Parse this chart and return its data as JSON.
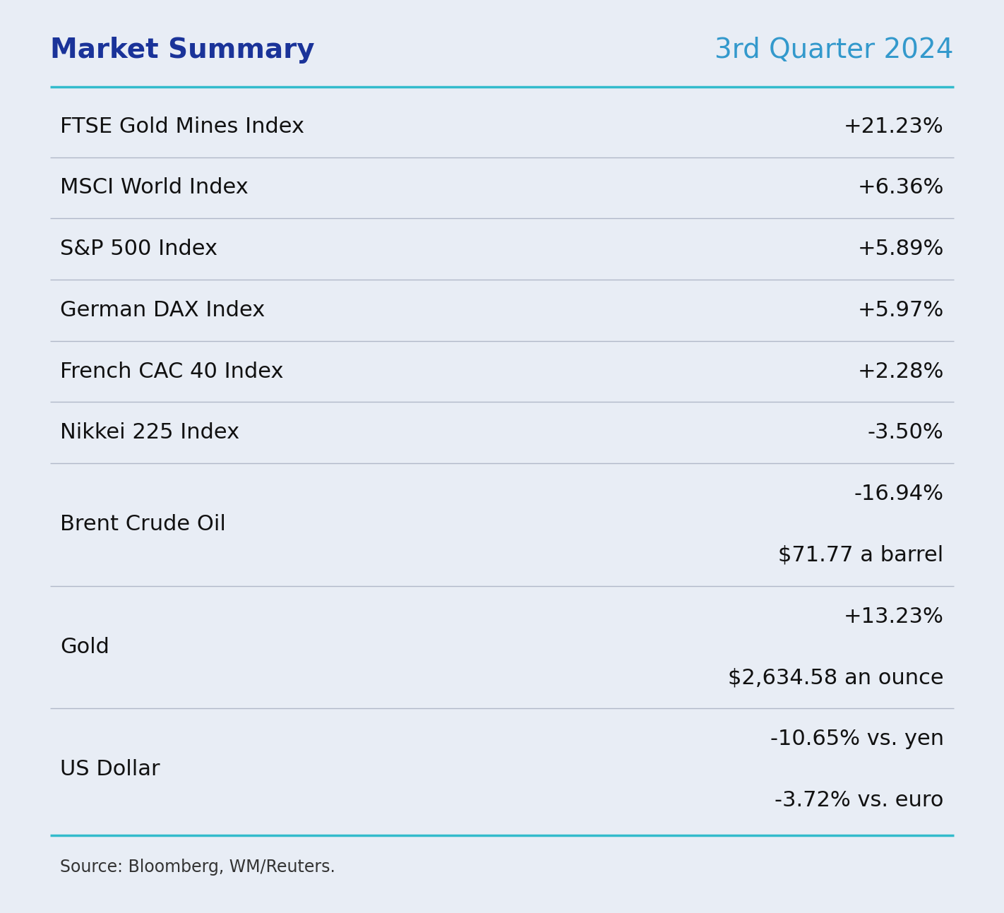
{
  "title_left": "Market Summary",
  "title_right": "3rd Quarter 2024",
  "title_left_color": "#1a3399",
  "title_right_color": "#3399cc",
  "background_color": "#e8edf5",
  "header_line_color": "#33bbcc",
  "row_line_color": "#b0b8c8",
  "footer_line_color": "#33bbcc",
  "source_text": "Source: Bloomberg, WM/Reuters.",
  "rows": [
    {
      "label": "FTSE Gold Mines Index",
      "values": [
        "+21.23%"
      ]
    },
    {
      "label": "MSCI World Index",
      "values": [
        "+6.36%"
      ]
    },
    {
      "label": "S&P 500 Index",
      "values": [
        "+5.89%"
      ]
    },
    {
      "label": "German DAX Index",
      "values": [
        "+5.97%"
      ]
    },
    {
      "label": "French CAC 40 Index",
      "values": [
        "+2.28%"
      ]
    },
    {
      "label": "Nikkei 225 Index",
      "values": [
        "-3.50%"
      ]
    },
    {
      "label": "Brent Crude Oil",
      "values": [
        "-16.94%",
        "$71.77 a barrel"
      ]
    },
    {
      "label": "Gold",
      "values": [
        "+13.23%",
        "$2,634.58 an ounce"
      ]
    },
    {
      "label": "US Dollar",
      "values": [
        "-10.65% vs. yen",
        "-3.72% vs. euro"
      ]
    }
  ],
  "title_fontsize": 28,
  "label_fontsize": 22,
  "value_fontsize": 22,
  "source_fontsize": 17
}
